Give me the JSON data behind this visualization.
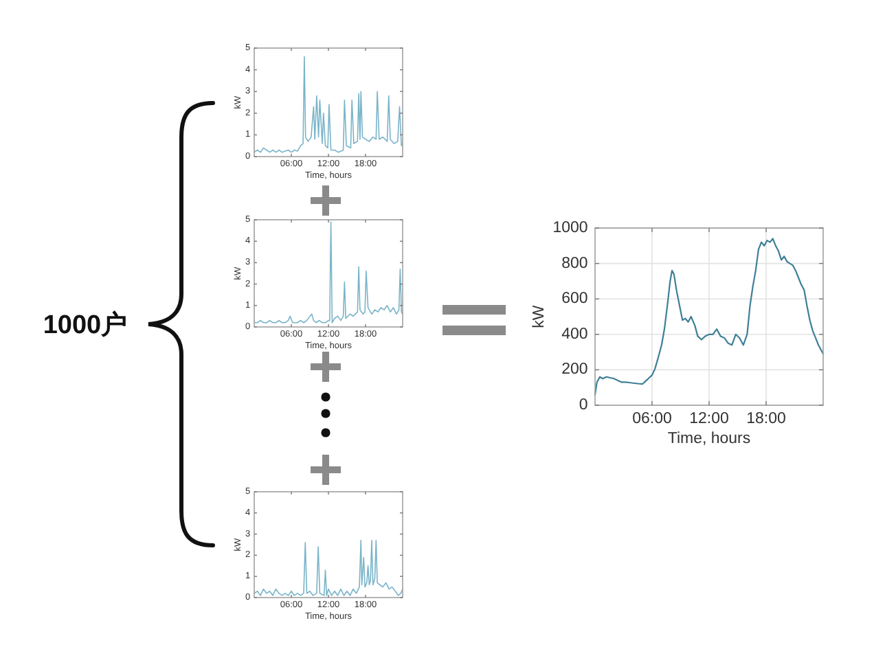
{
  "chart_data": [
    {
      "type": "other",
      "annotations": [
        "1000户"
      ]
    },
    {
      "type": "line",
      "xlabel": "Time, hours",
      "ylabel": "kW",
      "xlim": [
        0,
        24
      ],
      "xticks": [
        {
          "value": 6,
          "label": "06:00"
        },
        {
          "value": 12,
          "label": "12:00"
        },
        {
          "value": 18,
          "label": "18:00"
        }
      ],
      "ylim": [
        0,
        5
      ],
      "yticks": [
        0,
        1,
        2,
        3,
        4,
        5
      ],
      "color": "#79b4c9",
      "x": [
        0,
        0.5,
        1,
        1.5,
        2,
        2.5,
        3,
        3.5,
        4,
        4.5,
        5,
        5.5,
        6,
        6.5,
        7,
        7.5,
        7.9,
        8.1,
        8.3,
        8.7,
        9.2,
        9.6,
        9.8,
        10.1,
        10.4,
        10.6,
        11.0,
        11.2,
        11.5,
        11.9,
        12.1,
        12.4,
        13.0,
        13.6,
        14.4,
        14.6,
        14.9,
        15.6,
        15.8,
        16.1,
        16.7,
        16.9,
        17.1,
        17.25,
        17.5,
        18.0,
        18.6,
        19.2,
        19.7,
        19.9,
        20.2,
        20.8,
        21.5,
        21.75,
        22.0,
        22.6,
        23.2,
        23.5,
        23.8,
        24
      ],
      "values": [
        0.2,
        0.3,
        0.2,
        0.4,
        0.3,
        0.2,
        0.3,
        0.2,
        0.3,
        0.2,
        0.25,
        0.3,
        0.2,
        0.3,
        0.25,
        0.5,
        0.6,
        4.6,
        0.9,
        0.7,
        0.9,
        2.3,
        0.8,
        2.8,
        0.9,
        2.6,
        0.6,
        2.0,
        0.5,
        0.4,
        2.4,
        0.3,
        0.3,
        0.2,
        0.3,
        2.6,
        0.5,
        0.4,
        2.6,
        0.6,
        0.7,
        2.9,
        0.8,
        3.0,
        0.9,
        0.8,
        0.7,
        0.9,
        0.8,
        3.0,
        0.8,
        0.9,
        0.7,
        2.8,
        0.8,
        0.6,
        0.7,
        2.3,
        0.5,
        0.6
      ]
    },
    {
      "type": "line",
      "xlabel": "Time, hours",
      "ylabel": "kW",
      "xlim": [
        0,
        24
      ],
      "xticks": [
        {
          "value": 6,
          "label": "06:00"
        },
        {
          "value": 12,
          "label": "12:00"
        },
        {
          "value": 18,
          "label": "18:00"
        }
      ],
      "ylim": [
        0,
        5
      ],
      "yticks": [
        0,
        1,
        2,
        3,
        4,
        5
      ],
      "color": "#79b4c9",
      "x": [
        0,
        0.5,
        1,
        1.5,
        2,
        2.5,
        3,
        3.5,
        4,
        4.5,
        5,
        5.5,
        5.8,
        6.2,
        7,
        7.5,
        8,
        8.5,
        9,
        9.3,
        9.6,
        10,
        10.5,
        11,
        11.5,
        12,
        12.2,
        12.4,
        12.6,
        13,
        13.5,
        14,
        14.4,
        14.6,
        14.8,
        15.5,
        16,
        16.7,
        16.9,
        17.1,
        17.6,
        17.9,
        18.1,
        18.4,
        19,
        19.5,
        20,
        20.5,
        21,
        21.5,
        22,
        22.5,
        23,
        23.4,
        23.6,
        23.8,
        24
      ],
      "values": [
        0.2,
        0.2,
        0.3,
        0.2,
        0.2,
        0.3,
        0.2,
        0.2,
        0.3,
        0.2,
        0.2,
        0.3,
        0.5,
        0.2,
        0.2,
        0.3,
        0.2,
        0.3,
        0.5,
        0.6,
        0.3,
        0.2,
        0.3,
        0.2,
        0.2,
        0.3,
        0.3,
        4.9,
        0.2,
        0.4,
        0.5,
        0.3,
        0.5,
        2.1,
        0.4,
        0.6,
        0.5,
        0.7,
        2.8,
        0.8,
        0.6,
        0.7,
        2.6,
        0.9,
        0.6,
        0.8,
        0.7,
        0.9,
        0.8,
        1.0,
        0.7,
        0.9,
        0.6,
        0.8,
        2.7,
        0.7,
        0.6
      ]
    },
    {
      "type": "line",
      "xlabel": "Time, hours",
      "ylabel": "kW",
      "xlim": [
        0,
        24
      ],
      "xticks": [
        {
          "value": 6,
          "label": "06:00"
        },
        {
          "value": 12,
          "label": "12:00"
        },
        {
          "value": 18,
          "label": "18:00"
        }
      ],
      "ylim": [
        0,
        5
      ],
      "yticks": [
        0,
        1,
        2,
        3,
        4,
        5
      ],
      "color": "#79b4c9",
      "x": [
        0,
        0.5,
        1,
        1.5,
        2,
        2.5,
        3,
        3.5,
        4,
        4.5,
        5,
        5.5,
        6,
        6.5,
        7,
        7.5,
        8.0,
        8.25,
        8.5,
        9,
        9.5,
        10.1,
        10.35,
        10.6,
        11.3,
        11.5,
        11.7,
        12,
        12.5,
        13,
        13.5,
        14,
        14.5,
        15,
        15.5,
        16,
        16.5,
        17.0,
        17.25,
        17.4,
        17.7,
        17.9,
        18.2,
        18.4,
        18.6,
        18.8,
        19.0,
        19.2,
        19.5,
        19.7,
        19.9,
        20.3,
        20.8,
        21.3,
        21.8,
        22.3,
        22.8,
        23.3,
        23.7,
        24
      ],
      "values": [
        0.2,
        0.3,
        0.1,
        0.4,
        0.2,
        0.3,
        0.1,
        0.4,
        0.2,
        0.1,
        0.2,
        0.1,
        0.3,
        0.1,
        0.2,
        0.1,
        0.2,
        2.6,
        0.2,
        0.3,
        0.1,
        0.2,
        2.4,
        0.2,
        0.1,
        1.3,
        0.1,
        0.4,
        0.1,
        0.3,
        0.1,
        0.4,
        0.1,
        0.3,
        0.1,
        0.4,
        0.2,
        0.5,
        2.7,
        0.6,
        1.9,
        0.5,
        0.7,
        1.5,
        0.6,
        0.8,
        2.7,
        0.6,
        0.9,
        2.7,
        0.7,
        0.6,
        0.5,
        0.7,
        0.4,
        0.5,
        0.3,
        0.1,
        0.2,
        0.4
      ]
    },
    {
      "type": "line",
      "xlabel": "Time, hours",
      "ylabel": "kW",
      "xlim": [
        0,
        24
      ],
      "xticks": [
        {
          "value": 6,
          "label": "06:00"
        },
        {
          "value": 12,
          "label": "12:00"
        },
        {
          "value": 18,
          "label": "18:00"
        }
      ],
      "ylim": [
        0,
        1000
      ],
      "yticks": [
        0,
        200,
        400,
        600,
        800,
        1000
      ],
      "grid": true,
      "color": "#3d7f96",
      "x": [
        0,
        0.2,
        0.5,
        0.8,
        1.2,
        1.6,
        2.0,
        2.4,
        2.8,
        3.2,
        3.6,
        4.0,
        4.5,
        5.0,
        5.3,
        5.6,
        6.0,
        6.3,
        6.6,
        7.0,
        7.3,
        7.6,
        7.9,
        8.1,
        8.3,
        8.6,
        8.9,
        9.2,
        9.5,
        9.8,
        10.1,
        10.5,
        10.8,
        11.2,
        11.6,
        12.0,
        12.4,
        12.8,
        13.2,
        13.6,
        14.0,
        14.4,
        14.8,
        15.2,
        15.6,
        16.0,
        16.3,
        16.6,
        16.9,
        17.2,
        17.5,
        17.8,
        18.1,
        18.4,
        18.7,
        19.0,
        19.3,
        19.6,
        19.9,
        20.2,
        20.5,
        20.8,
        21.1,
        21.4,
        21.7,
        22.0,
        22.3,
        22.6,
        22.9,
        23.2,
        23.5,
        23.8,
        24
      ],
      "values": [
        60,
        130,
        160,
        150,
        160,
        155,
        150,
        140,
        130,
        130,
        128,
        125,
        122,
        120,
        135,
        150,
        170,
        205,
        260,
        340,
        430,
        560,
        700,
        760,
        740,
        640,
        560,
        480,
        490,
        470,
        500,
        450,
        390,
        370,
        390,
        400,
        400,
        430,
        390,
        380,
        350,
        340,
        400,
        380,
        340,
        400,
        560,
        670,
        760,
        880,
        920,
        900,
        930,
        920,
        940,
        900,
        870,
        820,
        840,
        810,
        800,
        790,
        760,
        720,
        680,
        650,
        560,
        480,
        420,
        380,
        340,
        310,
        290
      ]
    }
  ]
}
